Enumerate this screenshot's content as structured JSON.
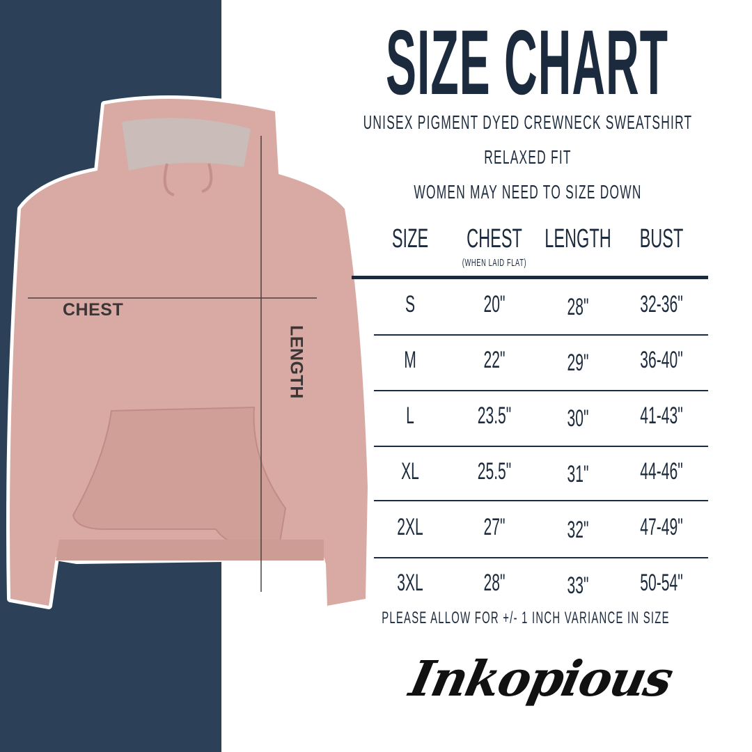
{
  "title": "SIZE CHART",
  "subtitle_lines": [
    "UNISEX PIGMENT DYED CREWNECK SWEATSHIRT",
    "RELAXED FIT",
    "WOMEN MAY NEED TO SIZE DOWN"
  ],
  "garment_labels": {
    "chest": "CHEST",
    "length": "LENGTH"
  },
  "table": {
    "headers": [
      "SIZE",
      "CHEST",
      "LENGTH",
      "BUST"
    ],
    "chest_note": "(WHEN LAID FLAT)",
    "rows": [
      [
        "S",
        "20\"",
        "28\"",
        "32-36\""
      ],
      [
        "M",
        "22\"",
        "29\"",
        "36-40\""
      ],
      [
        "L",
        "23.5\"",
        "30\"",
        "41-43\""
      ],
      [
        "XL",
        "25.5\"",
        "31\"",
        "44-46\""
      ],
      [
        "2XL",
        "27\"",
        "32\"",
        "47-49\""
      ],
      [
        "3XL",
        "28\"",
        "33\"",
        "50-54\""
      ]
    ]
  },
  "footnote": "PLEASE ALLOW FOR +/- 1 INCH VARIANCE IN SIZE",
  "logo": "Inkopious",
  "colors": {
    "navy": "#2c4157",
    "text": "#1b2a3d",
    "hoodie": "#d8aaa3"
  }
}
